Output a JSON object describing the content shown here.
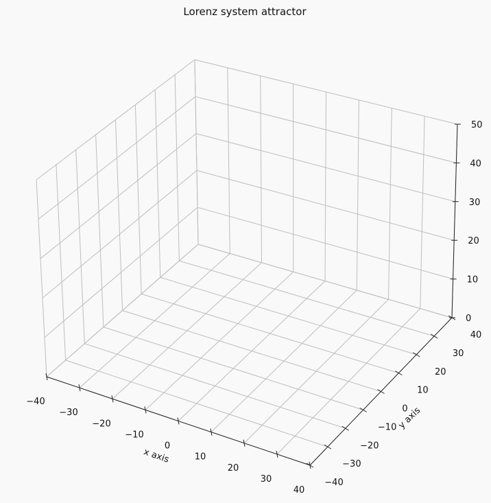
{
  "chart_data": {
    "type": "line",
    "projection": "3d",
    "title": "Lorenz system attractor",
    "xlabel": "x axis",
    "ylabel": "y axis",
    "zlabel": "",
    "xlim": [
      -40,
      40
    ],
    "ylim": [
      -40,
      40
    ],
    "zlim": [
      0,
      50
    ],
    "x_ticks": [
      -40,
      -30,
      -20,
      -10,
      0,
      10,
      20,
      30,
      40
    ],
    "y_ticks": [
      -40,
      -30,
      -20,
      -10,
      0,
      10,
      20,
      30,
      40
    ],
    "z_ticks": [
      0,
      10,
      20,
      30,
      40,
      50
    ],
    "grid": true,
    "series": []
  }
}
